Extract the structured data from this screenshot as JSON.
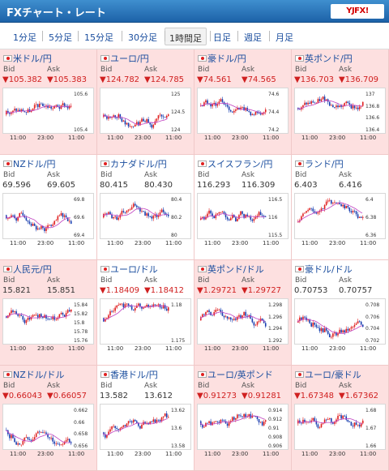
{
  "header": {
    "title": "FXチャート・レート",
    "logo": "YJFX!"
  },
  "tabs": [
    {
      "label": "1分足",
      "active": false
    },
    {
      "label": "5分足",
      "active": false
    },
    {
      "label": "15分足",
      "active": false
    },
    {
      "label": "30分足",
      "active": false
    },
    {
      "label": "1時間足",
      "active": true
    },
    {
      "label": "日足",
      "active": false
    },
    {
      "label": "週足",
      "active": false
    },
    {
      "label": "月足",
      "active": false
    }
  ],
  "labels": {
    "bid": "Bid",
    "ask": "Ask"
  },
  "x_ticks": [
    "11:00",
    "23:00",
    "11:00"
  ],
  "pairs": [
    {
      "name": "米ドル/円",
      "bid": "▼105.382",
      "ask": "▼105.383",
      "trend": "down",
      "bg": "pink",
      "y_ticks": [
        "105.6",
        "105.4"
      ]
    },
    {
      "name": "ユーロ/円",
      "bid": "▼124.782",
      "ask": "▼124.785",
      "trend": "down",
      "bg": "pink",
      "y_ticks": [
        "125",
        "124.5",
        "124"
      ]
    },
    {
      "name": "豪ドル/円",
      "bid": "▼74.561",
      "ask": "▼74.565",
      "trend": "down",
      "bg": "pink",
      "y_ticks": [
        "74.6",
        "74.4",
        "74.2"
      ]
    },
    {
      "name": "英ポンド/円",
      "bid": "▼136.703",
      "ask": "▼136.709",
      "trend": "down",
      "bg": "pink",
      "y_ticks": [
        "137",
        "136.8",
        "136.6",
        "136.4"
      ]
    },
    {
      "name": "NZドル/円",
      "bid": "69.596",
      "ask": "69.605",
      "trend": "flat",
      "bg": "white",
      "y_ticks": [
        "69.8",
        "69.6",
        "69.4"
      ]
    },
    {
      "name": "カナダドル/円",
      "bid": "80.415",
      "ask": "80.430",
      "trend": "flat",
      "bg": "white",
      "y_ticks": [
        "80.4",
        "80.2",
        "80"
      ]
    },
    {
      "name": "スイスフラン/円",
      "bid": "116.293",
      "ask": "116.309",
      "trend": "flat",
      "bg": "white",
      "y_ticks": [
        "116.5",
        "116",
        "115.5"
      ]
    },
    {
      "name": "ランド/円",
      "bid": "6.403",
      "ask": "6.416",
      "trend": "flat",
      "bg": "white",
      "y_ticks": [
        "6.4",
        "6.38",
        "6.36"
      ]
    },
    {
      "name": "人民元/円",
      "bid": "15.821",
      "ask": "15.851",
      "trend": "flat",
      "bg": "pink",
      "y_ticks": [
        "15.84",
        "15.82",
        "15.8",
        "15.78",
        "15.76"
      ]
    },
    {
      "name": "ユーロ/ドル",
      "bid": "▼1.18409",
      "ask": "▼1.18412",
      "trend": "down",
      "bg": "white",
      "y_ticks": [
        "1.18",
        "1.175"
      ]
    },
    {
      "name": "英ポンド/ドル",
      "bid": "▼1.29721",
      "ask": "▼1.29727",
      "trend": "down",
      "bg": "pink",
      "y_ticks": [
        "1.298",
        "1.296",
        "1.294",
        "1.292"
      ]
    },
    {
      "name": "豪ドル/ドル",
      "bid": "0.70753",
      "ask": "0.70757",
      "trend": "flat",
      "bg": "white",
      "y_ticks": [
        "0.708",
        "0.706",
        "0.704",
        "0.702"
      ]
    },
    {
      "name": "NZドル/ドル",
      "bid": "▼0.66043",
      "ask": "▼0.66057",
      "trend": "down",
      "bg": "pink",
      "y_ticks": [
        "0.662",
        "0.66",
        "0.658",
        "0.656"
      ]
    },
    {
      "name": "香港ドル/円",
      "bid": "13.582",
      "ask": "13.612",
      "trend": "flat",
      "bg": "white",
      "y_ticks": [
        "13.62",
        "13.6",
        "13.58"
      ]
    },
    {
      "name": "ユーロ/英ポンド",
      "bid": "▼0.91273",
      "ask": "▼0.91281",
      "trend": "down",
      "bg": "pink",
      "y_ticks": [
        "0.914",
        "0.912",
        "0.91",
        "0.908",
        "0.906"
      ]
    },
    {
      "name": "ユーロ/豪ドル",
      "bid": "▼1.67348",
      "ask": "▼1.67362",
      "trend": "down",
      "bg": "pink",
      "y_ticks": [
        "1.68",
        "1.67",
        "1.66"
      ]
    }
  ],
  "colors": {
    "header": "#2a72b8",
    "link": "#1a4d9e",
    "down": "#d02020",
    "pink_bg": "#fde0e0",
    "candle_up": "#e02020",
    "candle_down": "#1a3fb0",
    "ma_line": "#c040c0"
  }
}
